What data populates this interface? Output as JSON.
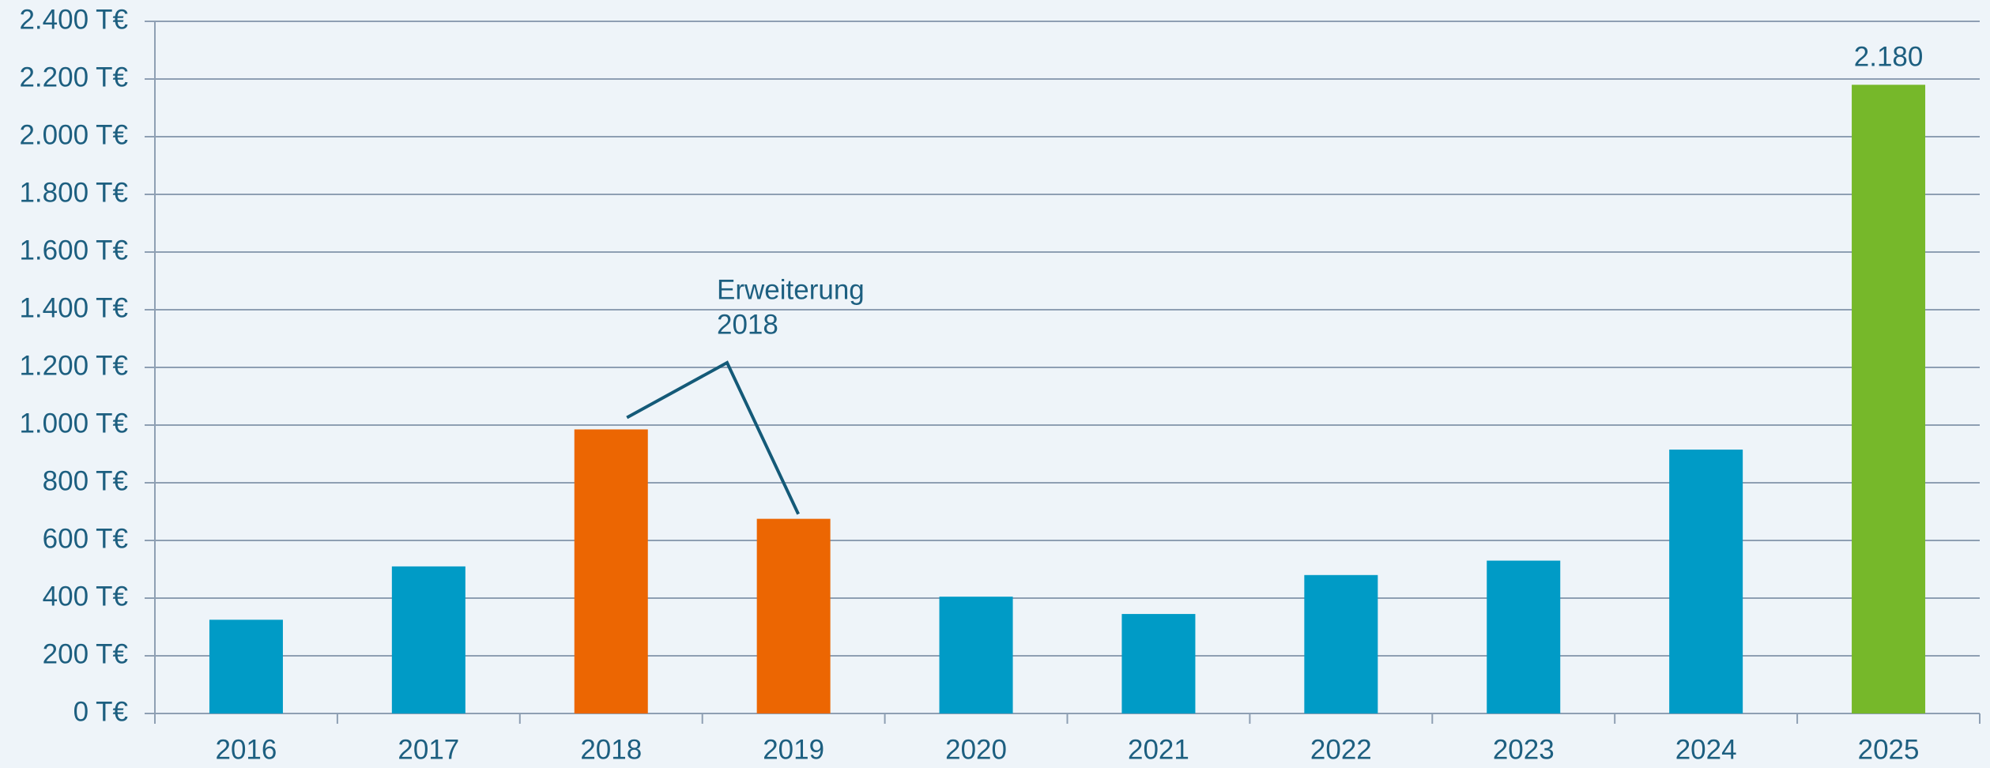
{
  "chart_data": {
    "type": "bar",
    "categories": [
      "2016",
      "2017",
      "2018",
      "2019",
      "2020",
      "2021",
      "2022",
      "2023",
      "2024",
      "2025"
    ],
    "values": [
      325,
      510,
      985,
      675,
      405,
      345,
      480,
      530,
      915,
      2180
    ],
    "value_labels": [
      null,
      null,
      null,
      null,
      null,
      null,
      null,
      null,
      null,
      "2.180"
    ],
    "colors": [
      "#009bc6",
      "#009bc6",
      "#ec6602",
      "#ec6602",
      "#009bc6",
      "#009bc6",
      "#009bc6",
      "#009bc6",
      "#009bc6",
      "#76b82a"
    ],
    "ylim": [
      0,
      2400
    ],
    "yticks": [
      {
        "value": 0,
        "label": "0 T€"
      },
      {
        "value": 200,
        "label": "200 T€"
      },
      {
        "value": 400,
        "label": "400 T€"
      },
      {
        "value": 600,
        "label": "600 T€"
      },
      {
        "value": 800,
        "label": "800 T€"
      },
      {
        "value": 1000,
        "label": "1.000 T€"
      },
      {
        "value": 1200,
        "label": "1.200 T€"
      },
      {
        "value": 1400,
        "label": "1.400 T€"
      },
      {
        "value": 1600,
        "label": "1.600 T€"
      },
      {
        "value": 1800,
        "label": "1.800 T€"
      },
      {
        "value": 2000,
        "label": "2.000 T€"
      },
      {
        "value": 2200,
        "label": "2.200 T€"
      },
      {
        "value": 2400,
        "label": "2.400 T€"
      }
    ],
    "grid": true,
    "annotation": {
      "text": [
        "Erweiterung",
        "2018"
      ]
    }
  }
}
